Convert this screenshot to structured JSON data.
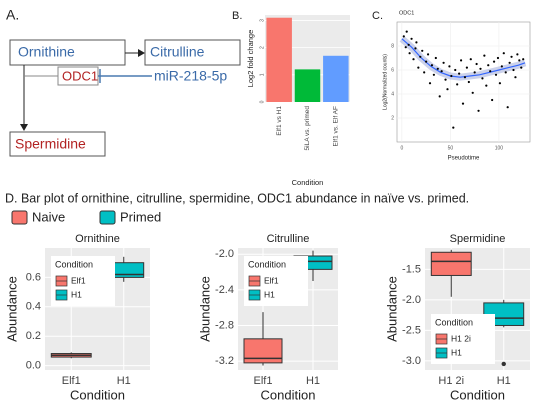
{
  "panel_a": {
    "label": "A.",
    "ornithine": "Ornithine",
    "citrulline": "Citrulline",
    "enzyme": "ODC1",
    "mirna": "miR-218-5p",
    "spermidine": "Spermidine"
  },
  "panel_labels": {
    "b": "B.",
    "c": "C."
  },
  "caption": "D. Bar plot of ornithine, citrulline, spermidine, ODC1 abundance in naïve vs. primed.",
  "legend": {
    "entries": [
      {
        "name": "Naive",
        "color": "#f8766d"
      },
      {
        "name": "Primed",
        "color": "#00bfc4"
      }
    ]
  },
  "chart_data": [
    {
      "type": "bar",
      "xlabel": "Condition",
      "ylabel": "Log2 fold change",
      "categories": [
        "Elf1 vs H1",
        "5iLA vs. primed",
        "Elf1 vs. Elf AF"
      ],
      "values": [
        3.1,
        1.2,
        1.7
      ],
      "colors": [
        "#f8766d",
        "#00ba38",
        "#619cff"
      ],
      "ylim": [
        0,
        3.2
      ],
      "yticks": [
        0,
        1,
        2,
        3
      ],
      "grid": true
    },
    {
      "type": "scatter",
      "title": "ODC1",
      "xlabel": "Pseudotime",
      "ylabel": "Log2(Normalized counts)",
      "x": [
        2,
        4,
        5,
        7,
        8,
        10,
        12,
        14,
        15,
        17,
        19,
        21,
        23,
        25,
        27,
        29,
        31,
        33,
        35,
        37,
        39,
        41,
        43,
        45,
        47,
        49,
        51,
        53,
        55,
        57,
        59,
        61,
        63,
        65,
        67,
        69,
        71,
        73,
        75,
        77,
        79,
        81,
        83,
        85,
        87,
        89,
        91,
        93,
        95,
        97,
        99,
        101,
        103,
        105,
        107,
        109,
        111,
        113,
        115,
        117,
        119,
        121,
        123,
        125
      ],
      "y": [
        8.8,
        7.9,
        9.2,
        8.1,
        7.4,
        8.6,
        6.9,
        7.8,
        8.3,
        6.2,
        7.1,
        7.6,
        5.8,
        6.7,
        7.3,
        4.9,
        6.4,
        5.6,
        7.0,
        6.1,
        3.8,
        5.9,
        6.6,
        5.2,
        4.4,
        6.3,
        5.5,
        1.2,
        6.0,
        4.8,
        5.7,
        6.8,
        3.2,
        5.4,
        6.2,
        5.0,
        6.9,
        4.1,
        5.8,
        6.5,
        2.6,
        6.1,
        5.3,
        7.2,
        4.7,
        6.4,
        5.9,
        3.5,
        6.7,
        5.6,
        7.0,
        4.9,
        6.3,
        7.4,
        5.8,
        2.9,
        6.6,
        7.1,
        6.0,
        5.4,
        7.3,
        6.8,
        6.2,
        6.9
      ],
      "color": "#000000",
      "trend": {
        "x": [
          0,
          10,
          20,
          30,
          40,
          50,
          60,
          70,
          80,
          90,
          100,
          110,
          120,
          127
        ],
        "y": [
          8.6,
          7.9,
          7.0,
          6.3,
          5.8,
          5.5,
          5.4,
          5.5,
          5.6,
          5.8,
          6.0,
          6.2,
          6.4,
          6.6
        ],
        "color": "#3366ff"
      },
      "xlim": [
        -5,
        132
      ],
      "ylim": [
        0,
        10
      ],
      "xticks": [
        0,
        50,
        100
      ],
      "yticks": [
        2,
        4,
        6,
        8
      ],
      "grid": true
    },
    {
      "type": "box",
      "title": "Ornithine",
      "xlabel": "Condition",
      "ylabel": "Abundance",
      "legend_title": "Condition",
      "categories": [
        "Elf1",
        "H1"
      ],
      "colors": [
        "#f8766d",
        "#00bfc4"
      ],
      "boxes": [
        {
          "min": 0.05,
          "q1": 0.058,
          "median": 0.07,
          "q3": 0.082,
          "max": 0.09,
          "outliers": []
        },
        {
          "min": 0.57,
          "q1": 0.6,
          "median": 0.62,
          "q3": 0.7,
          "max": 0.74,
          "outliers": []
        }
      ],
      "ylim": [
        -0.03,
        0.8
      ],
      "yticks": [
        {
          "value": 0,
          "label": "0.0"
        },
        0.2,
        0.4,
        0.6
      ],
      "grid": true
    },
    {
      "type": "box",
      "title": "Citrulline",
      "xlabel": "Condition",
      "ylabel": "Abundance",
      "legend_title": "Condition",
      "categories": [
        "Elf1",
        "H1"
      ],
      "colors": [
        "#f8766d",
        "#00bfc4"
      ],
      "boxes": [
        {
          "min": -3.25,
          "q1": -3.22,
          "median": -3.17,
          "q3": -2.95,
          "max": -2.65,
          "outliers": []
        },
        {
          "min": -2.3,
          "q1": -2.17,
          "median": -2.08,
          "q3": -2.02,
          "max": -1.96,
          "outliers": []
        }
      ],
      "ylim": [
        -3.3,
        -1.93
      ],
      "yticks": [
        -3.2,
        -2.8,
        -2.4,
        {
          "value": -2,
          "label": "-2.0"
        }
      ],
      "grid": true
    },
    {
      "type": "box",
      "title": "Spermidine",
      "xlabel": "Condition",
      "ylabel": "Abundance",
      "legend_title": "Condition",
      "categories": [
        "H1 2i",
        "H1"
      ],
      "colors": [
        "#f8766d",
        "#00bfc4"
      ],
      "boxes": [
        {
          "min": -1.95,
          "q1": -1.6,
          "median": -1.37,
          "q3": -1.22,
          "max": -1.18,
          "outliers": []
        },
        {
          "min": -2.45,
          "q1": -2.42,
          "median": -2.3,
          "q3": -2.05,
          "max": -2.0,
          "outliers": [
            -3.05
          ]
        }
      ],
      "ylim": [
        -3.15,
        -1.15
      ],
      "yticks": [
        {
          "value": -3,
          "label": "-3.0"
        },
        -2.5,
        {
          "value": -2,
          "label": "-2.0"
        },
        -1.5
      ],
      "grid": true
    }
  ]
}
